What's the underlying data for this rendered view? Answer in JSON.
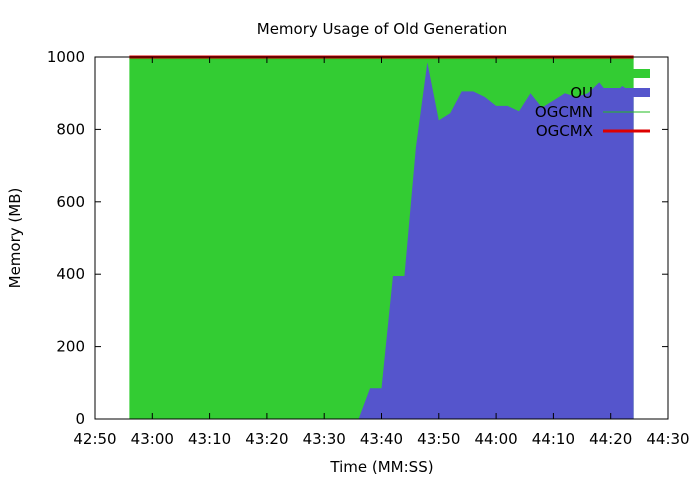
{
  "chart_data": {
    "type": "area",
    "title": "Memory Usage of Old Generation",
    "xlabel": "Time (MM:SS)",
    "ylabel": "Memory (MB)",
    "xlim": [
      "42:50",
      "44:30"
    ],
    "ylim": [
      0,
      1000
    ],
    "x_ticks": [
      "42:50",
      "43:00",
      "43:10",
      "43:20",
      "43:30",
      "43:40",
      "43:50",
      "44:00",
      "44:10",
      "44:20",
      "44:30"
    ],
    "y_ticks": [
      0,
      200,
      400,
      600,
      800,
      1000
    ],
    "grid": false,
    "legend_position": "top-right",
    "series": [
      {
        "name": "OU",
        "style": "filled-area",
        "color": "#5555cc",
        "x": [
          "42:56",
          "43:36",
          "43:38",
          "43:40",
          "43:42",
          "43:44",
          "43:46",
          "43:48",
          "43:50",
          "43:52",
          "43:54",
          "43:56",
          "43:58",
          "44:00",
          "44:02",
          "44:04",
          "44:06",
          "44:08",
          "44:10",
          "44:12",
          "44:14",
          "44:16",
          "44:18",
          "44:20",
          "44:22",
          "44:24"
        ],
        "values": [
          0,
          0,
          85,
          85,
          395,
          395,
          750,
          985,
          825,
          845,
          905,
          905,
          890,
          865,
          865,
          850,
          900,
          860,
          880,
          900,
          890,
          900,
          930,
          890,
          920,
          900
        ]
      },
      {
        "name": "",
        "style": "filled-area",
        "color": "#33cc33",
        "x": [
          "42:56",
          "44:24"
        ],
        "values": [
          995,
          995
        ]
      },
      {
        "name": "OGCMN",
        "style": "line",
        "color": "#22bb22",
        "x": [
          "42:56",
          "44:24"
        ],
        "values": [
          995,
          995
        ]
      },
      {
        "name": "OGCMX",
        "style": "line",
        "color": "#dd0000",
        "x": [
          "42:56",
          "44:24"
        ],
        "values": [
          1000,
          1000
        ]
      }
    ]
  }
}
